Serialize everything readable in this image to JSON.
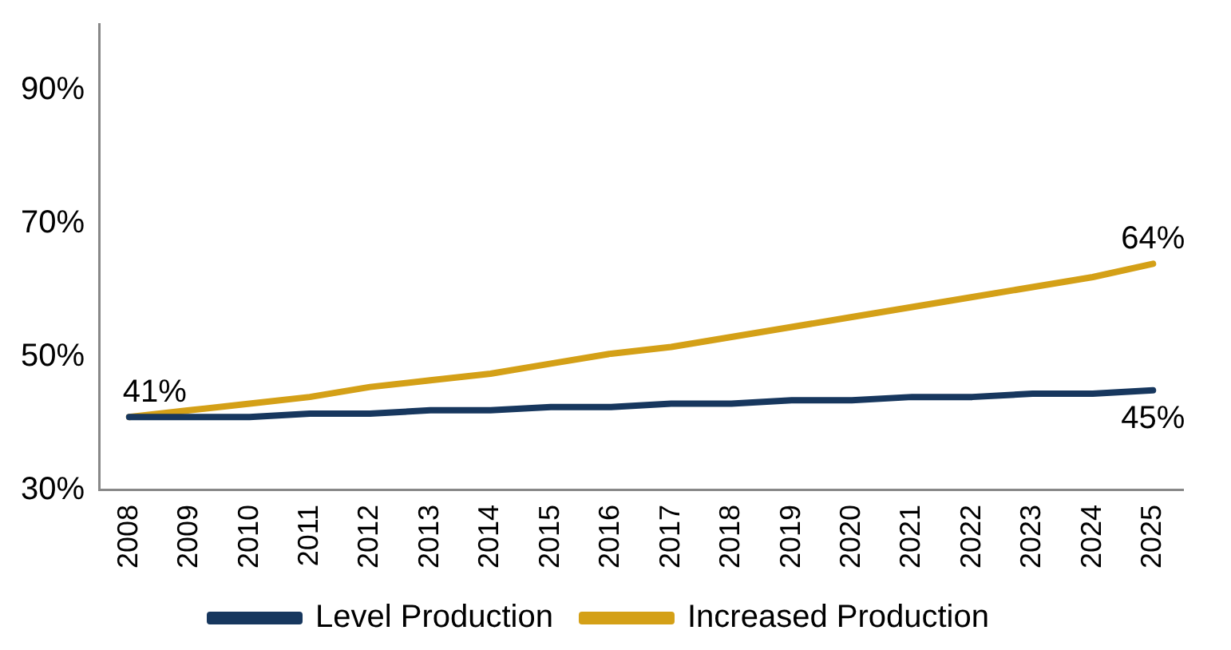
{
  "chart_data": {
    "type": "line",
    "categories": [
      "2008",
      "2009",
      "2010",
      "2011",
      "2012",
      "2013",
      "2014",
      "2015",
      "2016",
      "2017",
      "2018",
      "2019",
      "2020",
      "2021",
      "2022",
      "2023",
      "2024",
      "2025"
    ],
    "series": [
      {
        "name": "Level Production",
        "color": "#17375e",
        "values": [
          41,
          41,
          41,
          41.5,
          41.5,
          42,
          42,
          42.5,
          42.5,
          43,
          43,
          43.5,
          43.5,
          44,
          44,
          44.5,
          44.5,
          45
        ],
        "value_labels": [
          null,
          null,
          null,
          null,
          null,
          null,
          null,
          null,
          null,
          null,
          null,
          null,
          null,
          null,
          null,
          null,
          null,
          "45%"
        ]
      },
      {
        "name": "Increased Production",
        "color": "#d4a017",
        "values": [
          41,
          42,
          43,
          44,
          45.5,
          46.5,
          47.5,
          49,
          50.5,
          51.5,
          53,
          54.5,
          56,
          57.5,
          59,
          60.5,
          62,
          64
        ],
        "value_labels": [
          "41%",
          null,
          null,
          null,
          null,
          null,
          null,
          null,
          null,
          null,
          null,
          null,
          null,
          null,
          null,
          null,
          null,
          "64%"
        ]
      }
    ],
    "ylim": [
      30,
      100
    ],
    "yticks": [
      {
        "value": 30,
        "label": "30%"
      },
      {
        "value": 50,
        "label": "50%"
      },
      {
        "value": 70,
        "label": "70%"
      },
      {
        "value": 90,
        "label": "90%"
      }
    ],
    "grid": false,
    "legend": "bottom",
    "marker": "none",
    "line_style": "solid"
  }
}
